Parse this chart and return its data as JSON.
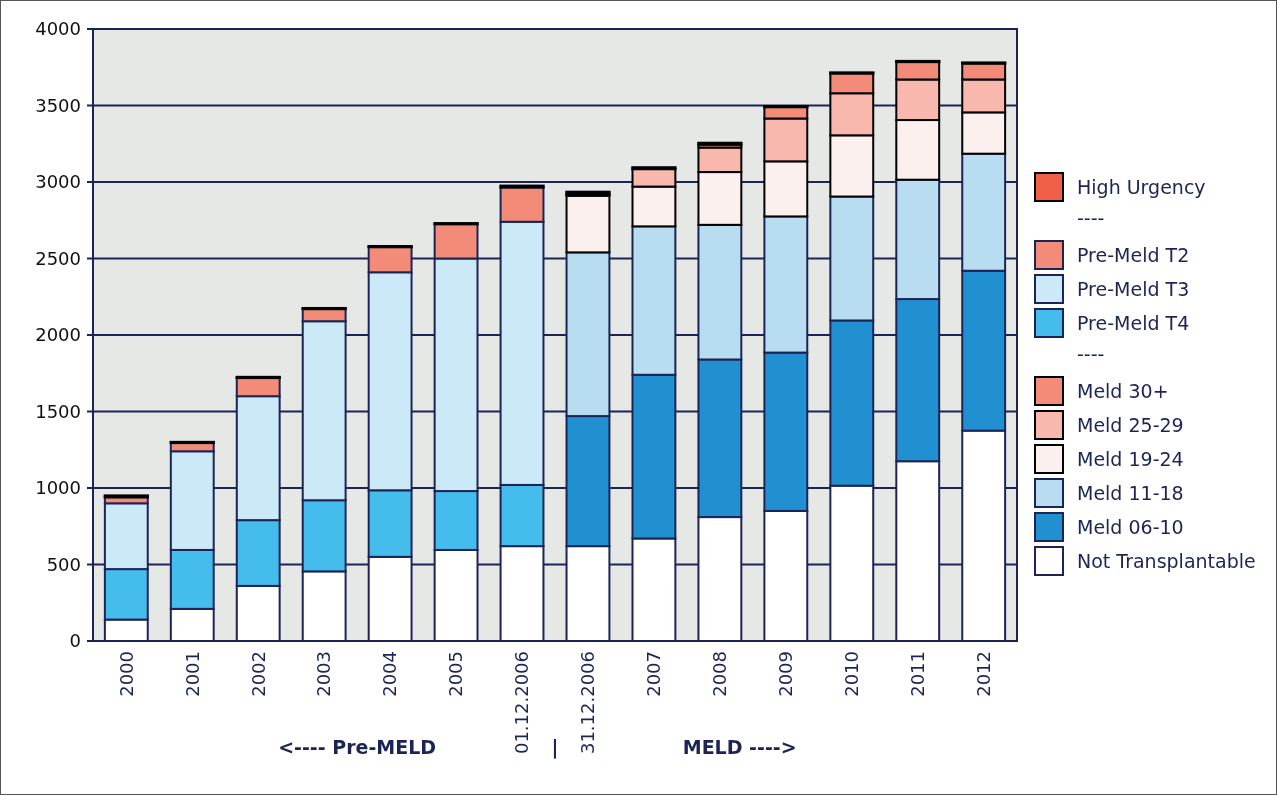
{
  "chart_data": {
    "type": "bar",
    "stacked": true,
    "categories": [
      "2000",
      "2001",
      "2002",
      "2003",
      "2004",
      "2005",
      "01.12.2006",
      "31.12.2006",
      "2007",
      "2008",
      "2009",
      "2010",
      "2011",
      "2012"
    ],
    "series": [
      {
        "name": "Not Transplantable",
        "color": "#ffffff",
        "values": [
          140,
          210,
          360,
          455,
          550,
          595,
          620,
          620,
          670,
          810,
          850,
          1015,
          1175,
          1375
        ]
      },
      {
        "name": "Meld 06-10",
        "color": "#2090d0",
        "values": [
          null,
          null,
          null,
          null,
          null,
          null,
          null,
          850,
          1070,
          1030,
          1035,
          1080,
          1060,
          1045
        ]
      },
      {
        "name": "Meld 11-18",
        "color": "#b8dcf0",
        "values": [
          null,
          null,
          null,
          null,
          null,
          null,
          null,
          1070,
          970,
          880,
          890,
          810,
          780,
          765
        ]
      },
      {
        "name": "Meld 19-24",
        "color": "#fcf0ee",
        "values": [
          null,
          null,
          null,
          null,
          null,
          null,
          null,
          370,
          260,
          345,
          360,
          400,
          390,
          270
        ]
      },
      {
        "name": "Meld 25-29",
        "color": "#f8b8ae",
        "values": [
          null,
          null,
          null,
          null,
          null,
          null,
          null,
          10,
          115,
          160,
          280,
          275,
          265,
          215
        ]
      },
      {
        "name": "Meld 30+",
        "color": "#f28c78",
        "values": [
          null,
          null,
          null,
          null,
          null,
          null,
          null,
          null,
          null,
          20,
          75,
          130,
          115,
          105
        ]
      },
      {
        "name": "Pre-Meld T4",
        "color": "#44bcec",
        "values": [
          330,
          385,
          430,
          465,
          435,
          385,
          400,
          null,
          null,
          null,
          null,
          null,
          null,
          null
        ]
      },
      {
        "name": "Pre-Meld T3",
        "color": "#cce9f8",
        "values": [
          430,
          645,
          810,
          1170,
          1425,
          1520,
          1720,
          null,
          null,
          null,
          null,
          null,
          null,
          null
        ]
      },
      {
        "name": "Pre-Meld T2",
        "color": "#f28c78",
        "values": [
          40,
          55,
          120,
          80,
          165,
          225,
          225,
          null,
          null,
          null,
          null,
          null,
          null,
          null
        ]
      },
      {
        "name": "High Urgency",
        "color": "#f06048",
        "values": [
          10,
          5,
          5,
          5,
          5,
          5,
          10,
          15,
          10,
          10,
          5,
          5,
          5,
          5
        ]
      }
    ],
    "ylim": [
      0,
      4000
    ],
    "yticks": [
      0,
      500,
      1000,
      1500,
      2000,
      2500,
      3000,
      3500,
      4000
    ],
    "grid": "y",
    "legend": "right",
    "annotations": [
      "<---- Pre-MELD",
      "|",
      "MELD ---->",
      "----",
      "----"
    ]
  }
}
